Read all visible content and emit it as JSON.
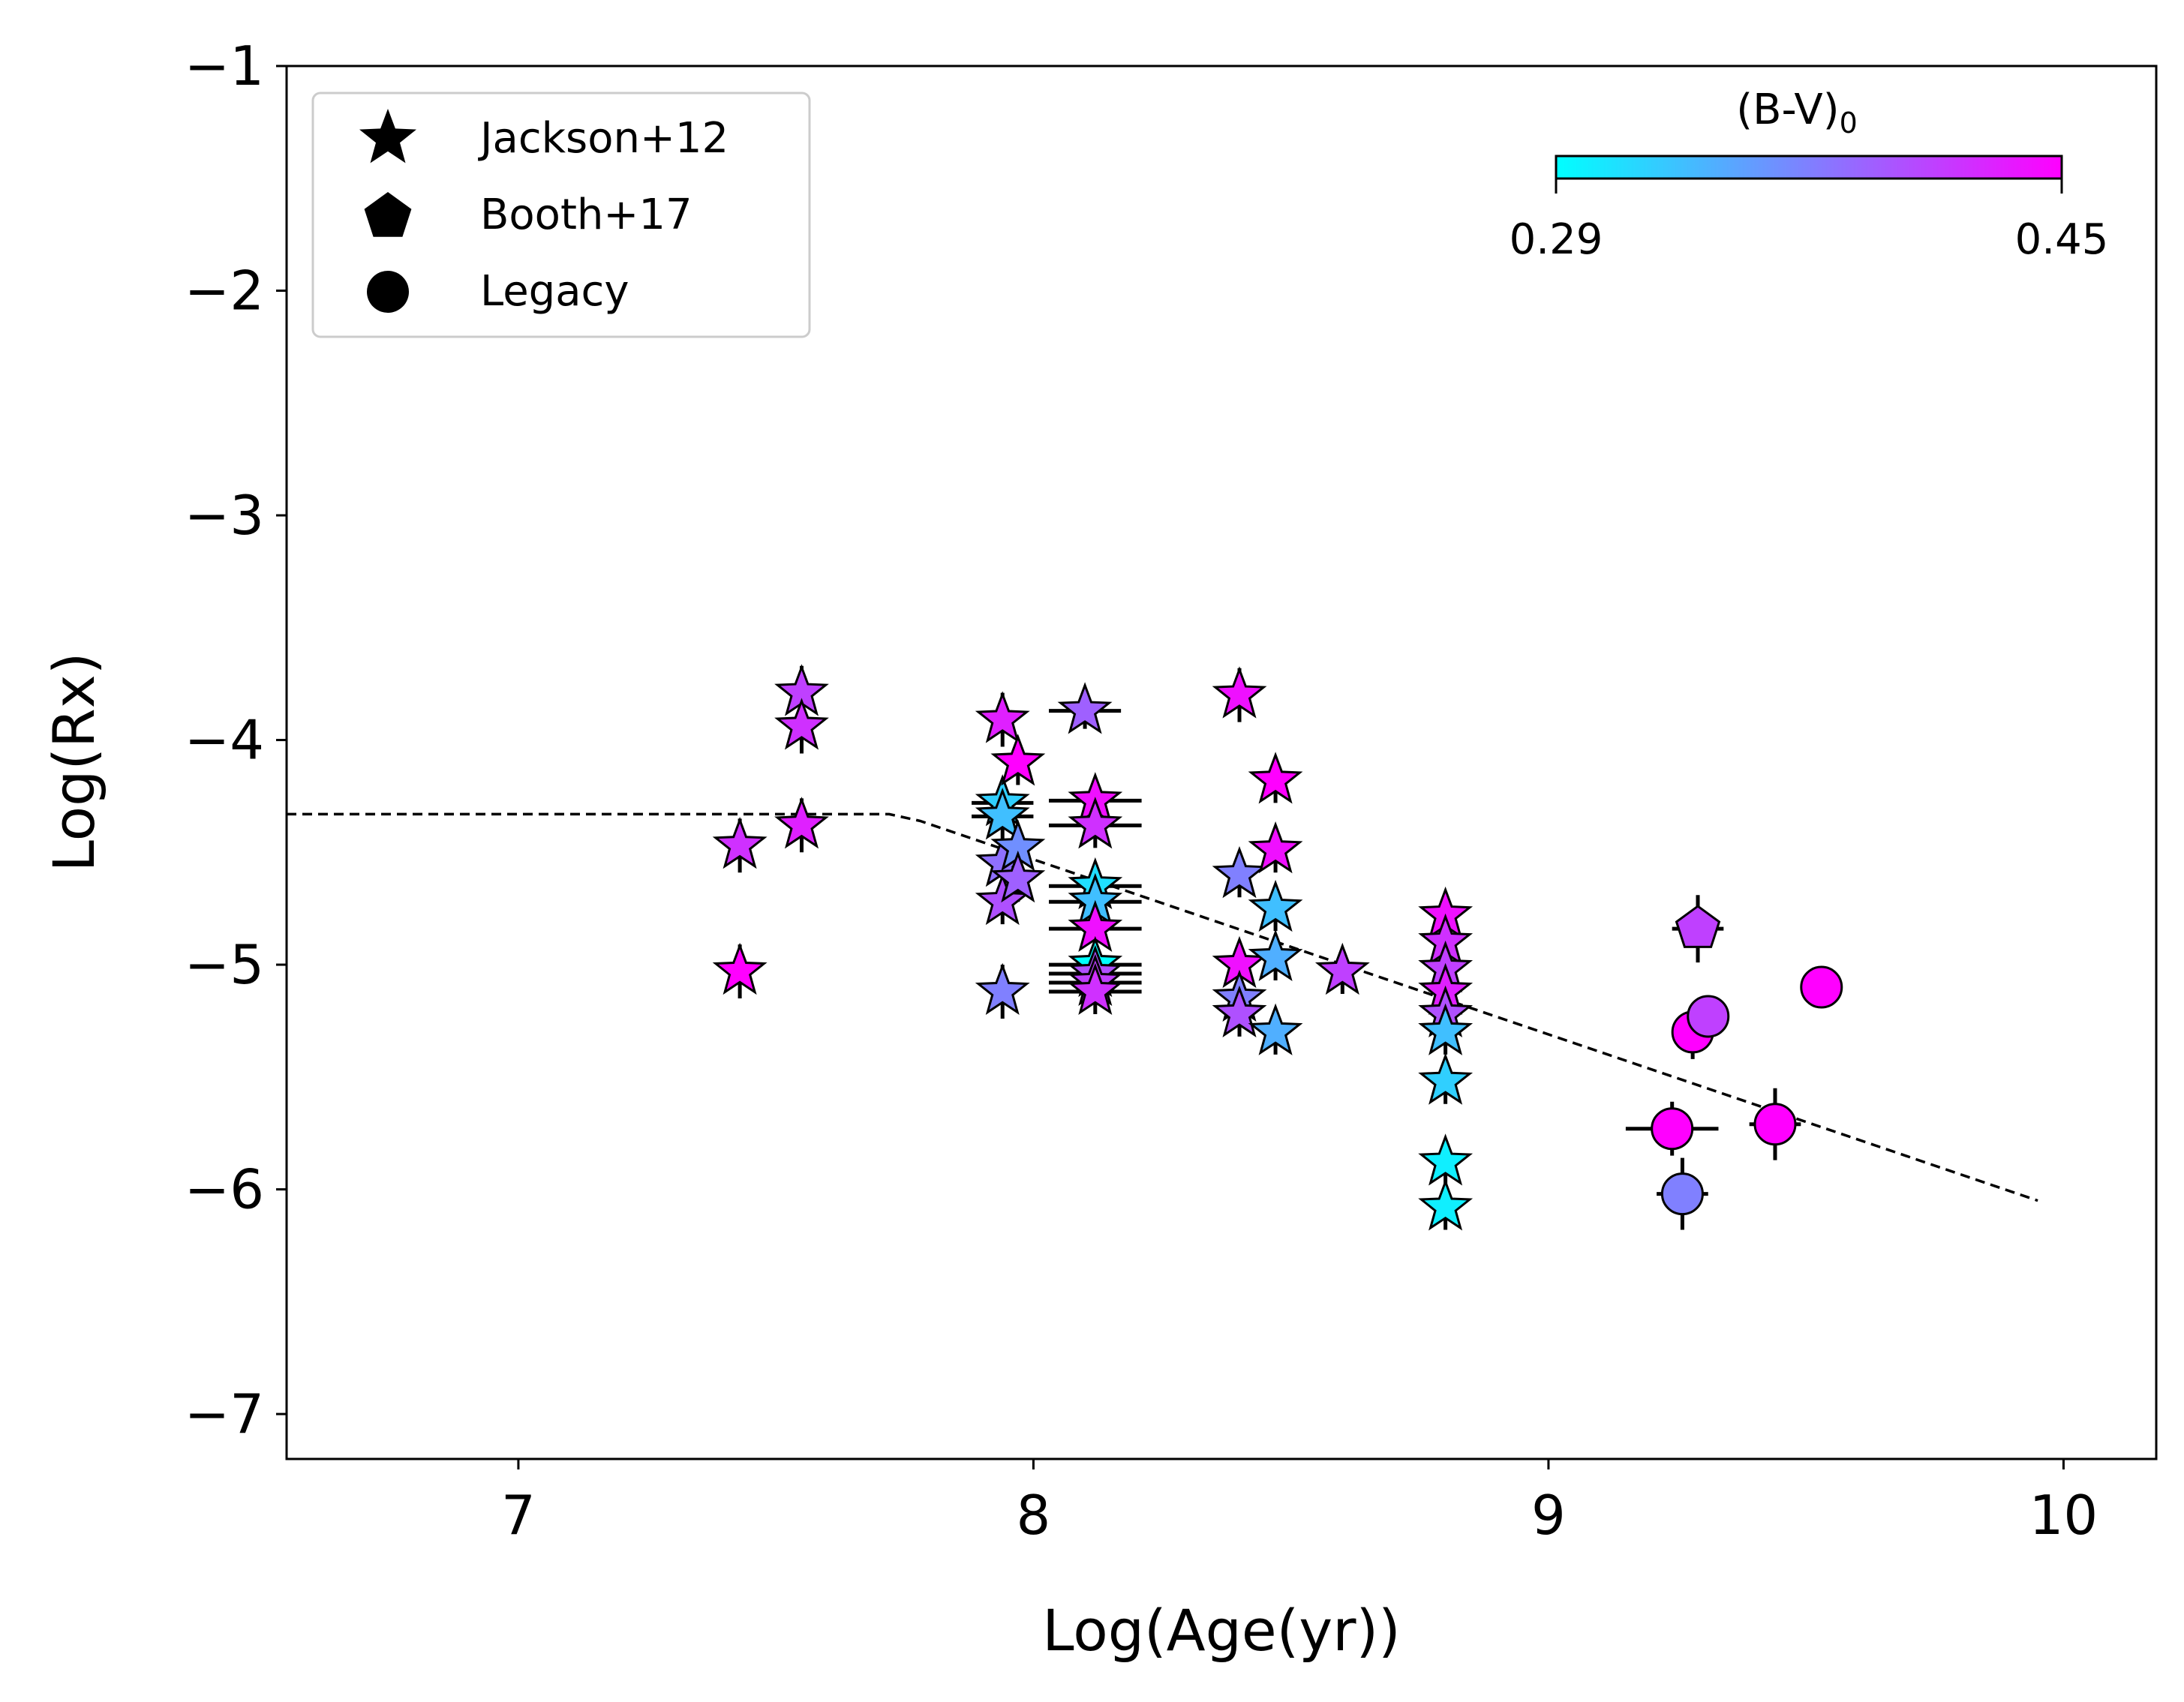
{
  "chart_data": {
    "type": "scatter",
    "title": "",
    "xlabel": "Log(Age(yr))",
    "ylabel": "Log(Rx)",
    "xlim": [
      6.55,
      10.18
    ],
    "ylim": [
      -7.2,
      -1.0
    ],
    "xticks": [
      7,
      8,
      9,
      10
    ],
    "yticks": [
      -7,
      -6,
      -5,
      -4,
      -3,
      -2,
      -1
    ],
    "xtick_labels": [
      "7",
      "8",
      "9",
      "10"
    ],
    "ytick_labels": [
      "−7",
      "−6",
      "−5",
      "−4",
      "−3",
      "−2",
      "−1"
    ],
    "grid": false,
    "legend": {
      "position": "top-left",
      "entries": [
        {
          "label": "Jackson+12",
          "marker": "star"
        },
        {
          "label": "Booth+17",
          "marker": "pentagon"
        },
        {
          "label": "Legacy",
          "marker": "circle"
        }
      ]
    },
    "colorbar": {
      "label": "(B-V)",
      "label_subscript": "0",
      "min": 0.29,
      "max": 0.45,
      "min_label": "0.29",
      "max_label": "0.45",
      "position": "top-right",
      "colormap": "cool",
      "color_start": "#00ffff",
      "color_end": "#ff00ff"
    },
    "trend_line": {
      "style": "dashed",
      "color": "#000000",
      "points": [
        [
          6.55,
          -4.33
        ],
        [
          7.72,
          -4.33
        ],
        [
          7.78,
          -4.36
        ],
        [
          9.95,
          -6.05
        ]
      ]
    },
    "series": [
      {
        "name": "Jackson+12",
        "marker": "star",
        "points": [
          {
            "x": 7.43,
            "y": -4.47,
            "bv": 0.42,
            "yerr": 0.12
          },
          {
            "x": 7.43,
            "y": -5.03,
            "bv": 0.45,
            "yerr": 0.12
          },
          {
            "x": 7.55,
            "y": -3.79,
            "bv": 0.41,
            "yerr": 0.12
          },
          {
            "x": 7.55,
            "y": -3.94,
            "bv": 0.42,
            "yerr": 0.12
          },
          {
            "x": 7.55,
            "y": -4.38,
            "bv": 0.43,
            "yerr": 0.12
          },
          {
            "x": 7.94,
            "y": -3.91,
            "bv": 0.43,
            "yerr": 0.12
          },
          {
            "x": 7.94,
            "y": -4.28,
            "bv": 0.32,
            "yerr": 0.1,
            "xerr": 0.06
          },
          {
            "x": 7.94,
            "y": -4.34,
            "bv": 0.33,
            "yerr": 0.1,
            "xerr": 0.06
          },
          {
            "x": 7.94,
            "y": -4.55,
            "bv": 0.38,
            "yerr": 0.1
          },
          {
            "x": 7.94,
            "y": -4.72,
            "bv": 0.4,
            "yerr": 0.1
          },
          {
            "x": 7.94,
            "y": -5.12,
            "bv": 0.37,
            "yerr": 0.12
          },
          {
            "x": 7.97,
            "y": -4.1,
            "bv": 0.45,
            "yerr": 0.1
          },
          {
            "x": 7.97,
            "y": -4.48,
            "bv": 0.36,
            "yerr": 0.1
          },
          {
            "x": 7.97,
            "y": -4.62,
            "bv": 0.39,
            "yerr": 0.1
          },
          {
            "x": 8.1,
            "y": -3.87,
            "bv": 0.39,
            "yerr": 0.08,
            "xerr": 0.07
          },
          {
            "x": 8.12,
            "y": -4.27,
            "bv": 0.44,
            "yerr": 0.1,
            "xerr": 0.09
          },
          {
            "x": 8.12,
            "y": -4.38,
            "bv": 0.42,
            "yerr": 0.1,
            "xerr": 0.09
          },
          {
            "x": 8.12,
            "y": -4.65,
            "bv": 0.31,
            "yerr": 0.1,
            "xerr": 0.09
          },
          {
            "x": 8.12,
            "y": -4.72,
            "bv": 0.33,
            "yerr": 0.1,
            "xerr": 0.09
          },
          {
            "x": 8.12,
            "y": -4.84,
            "bv": 0.44,
            "yerr": 0.1,
            "xerr": 0.09
          },
          {
            "x": 8.12,
            "y": -5.0,
            "bv": 0.29,
            "yerr": 0.1,
            "xerr": 0.09
          },
          {
            "x": 8.12,
            "y": -5.04,
            "bv": 0.4,
            "yerr": 0.1,
            "xerr": 0.09
          },
          {
            "x": 8.12,
            "y": -5.08,
            "bv": 0.41,
            "yerr": 0.1,
            "xerr": 0.09
          },
          {
            "x": 8.12,
            "y": -5.12,
            "bv": 0.42,
            "yerr": 0.1,
            "xerr": 0.09
          },
          {
            "x": 8.4,
            "y": -3.8,
            "bv": 0.44,
            "yerr": 0.12
          },
          {
            "x": 8.4,
            "y": -4.6,
            "bv": 0.37,
            "yerr": 0.1
          },
          {
            "x": 8.4,
            "y": -5.0,
            "bv": 0.44,
            "yerr": 0.1
          },
          {
            "x": 8.4,
            "y": -5.15,
            "bv": 0.37,
            "yerr": 0.1
          },
          {
            "x": 8.4,
            "y": -5.22,
            "bv": 0.4,
            "yerr": 0.1
          },
          {
            "x": 8.47,
            "y": -4.18,
            "bv": 0.45,
            "yerr": 0.1
          },
          {
            "x": 8.47,
            "y": -4.49,
            "bv": 0.44,
            "yerr": 0.1
          },
          {
            "x": 8.47,
            "y": -4.75,
            "bv": 0.33,
            "yerr": 0.1
          },
          {
            "x": 8.47,
            "y": -4.97,
            "bv": 0.34,
            "yerr": 0.1
          },
          {
            "x": 8.47,
            "y": -5.3,
            "bv": 0.34,
            "yerr": 0.1
          },
          {
            "x": 8.6,
            "y": -5.03,
            "bv": 0.41,
            "yerr": 0.1
          },
          {
            "x": 8.8,
            "y": -4.78,
            "bv": 0.44,
            "yerr": 0.1
          },
          {
            "x": 8.8,
            "y": -4.9,
            "bv": 0.42,
            "yerr": 0.1
          },
          {
            "x": 8.8,
            "y": -5.02,
            "bv": 0.41,
            "yerr": 0.1
          },
          {
            "x": 8.8,
            "y": -5.12,
            "bv": 0.43,
            "yerr": 0.1
          },
          {
            "x": 8.8,
            "y": -5.22,
            "bv": 0.4,
            "yerr": 0.1
          },
          {
            "x": 8.8,
            "y": -5.3,
            "bv": 0.33,
            "yerr": 0.1
          },
          {
            "x": 8.8,
            "y": -5.52,
            "bv": 0.32,
            "yerr": 0.1
          },
          {
            "x": 8.8,
            "y": -5.88,
            "bv": 0.3,
            "yerr": 0.1
          },
          {
            "x": 8.8,
            "y": -6.08,
            "bv": 0.3,
            "yerr": 0.1
          }
        ]
      },
      {
        "name": "Booth+17",
        "marker": "pentagon",
        "points": [
          {
            "x": 9.29,
            "y": -4.84,
            "bv": 0.41,
            "xerr": 0.05,
            "yerr": 0.15
          }
        ]
      },
      {
        "name": "Legacy",
        "marker": "circle",
        "points": [
          {
            "x": 9.24,
            "y": -5.73,
            "bv": 0.45,
            "xerr": 0.09,
            "yerr": 0.12
          },
          {
            "x": 9.26,
            "y": -6.02,
            "bv": 0.37,
            "xerr": 0.05,
            "yerr": 0.16
          },
          {
            "x": 9.28,
            "y": -5.3,
            "bv": 0.45,
            "xerr": 0.04,
            "yerr": 0.12
          },
          {
            "x": 9.31,
            "y": -5.23,
            "bv": 0.41,
            "xerr": 0.04,
            "yerr": 0.08
          },
          {
            "x": 9.44,
            "y": -5.71,
            "bv": 0.45,
            "xerr": 0.05,
            "yerr": 0.16
          },
          {
            "x": 9.53,
            "y": -5.1,
            "bv": 0.45,
            "xerr": 0.0,
            "yerr": 0.0
          }
        ]
      }
    ]
  }
}
